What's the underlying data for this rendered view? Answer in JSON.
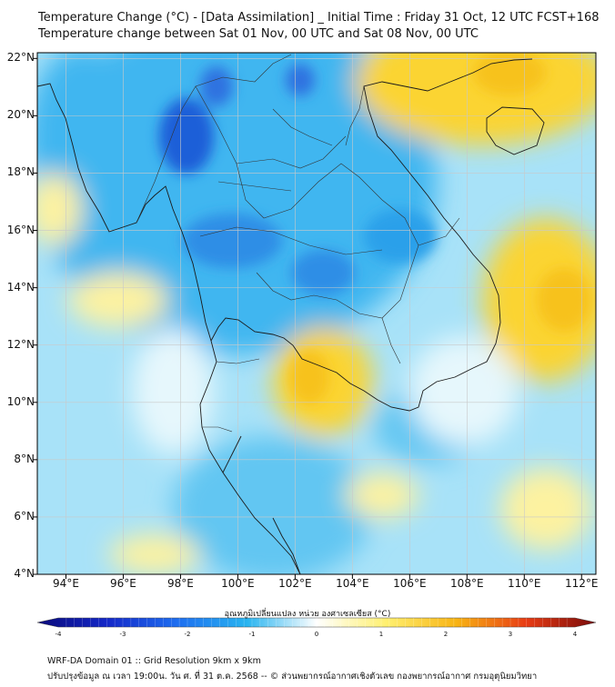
{
  "header": {
    "title_line1": "Temperature Change (°C) - [Data Assimilation] _ Initial Time : Friday 31 Oct, 12 UTC FCST+168",
    "title_line2": "Temperature change between Sat 01 Nov, 00 UTC and Sat 08 Nov, 00 UTC"
  },
  "map": {
    "lat_labels": [
      "22°N",
      "20°N",
      "18°N",
      "16°N",
      "14°N",
      "12°N",
      "10°N",
      "8°N",
      "6°N",
      "4°N"
    ],
    "lon_labels": [
      "94°E",
      "96°E",
      "98°E",
      "100°E",
      "102°E",
      "104°E",
      "106°E",
      "108°E",
      "110°E",
      "112°E"
    ],
    "lat_range": [
      4,
      22.2
    ],
    "lon_range": [
      93,
      112.5
    ],
    "colors": {
      "strong_cool": "#1f5fd8",
      "cool": "#3fb6f0",
      "light_cool": "#a8e2f8",
      "neutral": "#f4fbfd",
      "light_warm": "#fdf2a0",
      "warm": "#fbd431",
      "coast": "#1a1a1a",
      "border": "#333333"
    }
  },
  "colorbar": {
    "title": "อุณหภูมิเปลี่ยนแปลง หน่วย องศาเซลเซียส (°C)",
    "ticks": [
      "-4",
      "-3",
      "-2",
      "-1",
      "0",
      "1",
      "2",
      "3",
      "4"
    ],
    "range": [
      -4,
      4
    ],
    "stops": [
      "#0a0a7a",
      "#1428c8",
      "#1e6ef0",
      "#28b4f0",
      "#ffffff",
      "#fff070",
      "#f8b414",
      "#e83c14",
      "#780a0a"
    ]
  },
  "footer": {
    "line1": "WRF-DA Domain 01 :: Grid Resolution 9km x 9km",
    "line2": "ปรับปรุงข้อมูล ณ เวลา 19:00น. วัน ศ. ที่ 31 ต.ค. 2568 -- © ส่วนพยากรณ์อากาศเชิงตัวเลข กองพยากรณ์อากาศ กรมอุตุนิยมวิทยา"
  }
}
